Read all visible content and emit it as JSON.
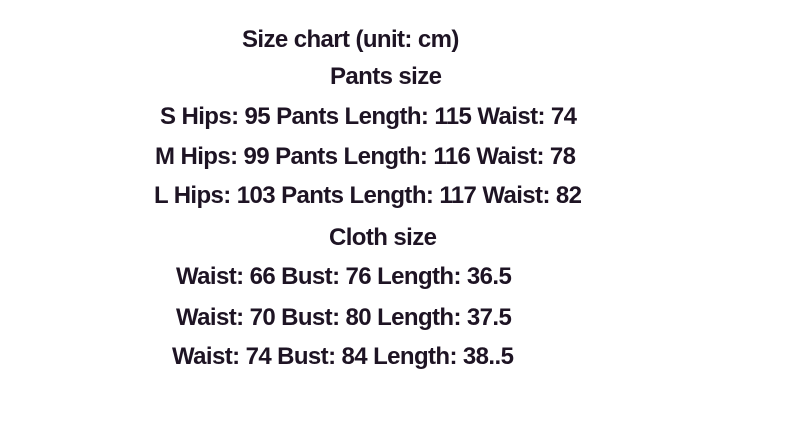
{
  "title": "Size chart (unit: cm)",
  "pants": {
    "heading": "Pants size",
    "rows": [
      "S Hips: 95 Pants Length: 115 Waist: 74",
      "M Hips: 99 Pants Length: 116 Waist: 78",
      "L Hips: 103 Pants Length: 117 Waist: 82"
    ]
  },
  "cloth": {
    "heading": "Cloth size",
    "rows": [
      "Waist: 66 Bust: 76 Length: 36.5",
      "Waist: 70 Bust: 80 Length: 37.5",
      "Waist: 74 Bust: 84 Length: 38..5"
    ]
  },
  "colors": {
    "text": "#1e1424",
    "background": "#ffffff"
  }
}
